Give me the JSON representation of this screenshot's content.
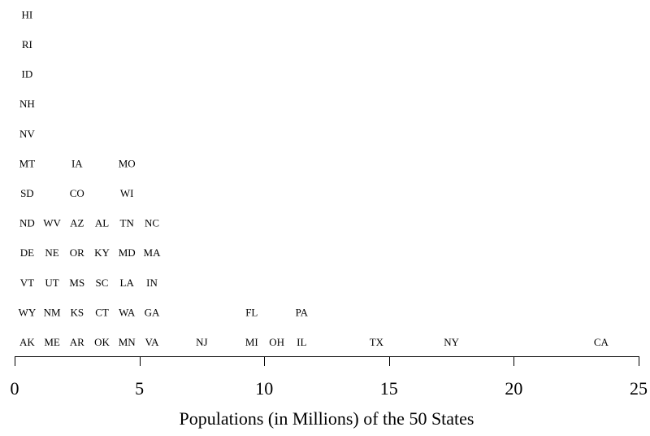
{
  "chart_data": {
    "type": "scatter",
    "xlabel": "Populations (in Millions) of the 50 States",
    "ylabel": "",
    "xlim": [
      0,
      25
    ],
    "x_ticks": [
      0,
      5,
      10,
      15,
      20,
      25
    ],
    "x_tick_labels": [
      "0",
      "5",
      "10",
      "15",
      "20",
      "25"
    ],
    "grid": false,
    "legend": "none",
    "marker": "state abbreviation text",
    "points": [
      {
        "label": "AK",
        "x": 0.5,
        "level": 1
      },
      {
        "label": "ME",
        "x": 1.5,
        "level": 1
      },
      {
        "label": "AR",
        "x": 2.5,
        "level": 1
      },
      {
        "label": "OK",
        "x": 3.5,
        "level": 1
      },
      {
        "label": "MN",
        "x": 4.5,
        "level": 1
      },
      {
        "label": "VA",
        "x": 5.5,
        "level": 1
      },
      {
        "label": "NJ",
        "x": 7.5,
        "level": 1
      },
      {
        "label": "MI",
        "x": 9.5,
        "level": 1
      },
      {
        "label": "OH",
        "x": 10.5,
        "level": 1
      },
      {
        "label": "IL",
        "x": 11.5,
        "level": 1
      },
      {
        "label": "TX",
        "x": 14.5,
        "level": 1
      },
      {
        "label": "NY",
        "x": 17.5,
        "level": 1
      },
      {
        "label": "CA",
        "x": 23.5,
        "level": 1
      },
      {
        "label": "WY",
        "x": 0.5,
        "level": 2
      },
      {
        "label": "NM",
        "x": 1.5,
        "level": 2
      },
      {
        "label": "KS",
        "x": 2.5,
        "level": 2
      },
      {
        "label": "CT",
        "x": 3.5,
        "level": 2
      },
      {
        "label": "WA",
        "x": 4.5,
        "level": 2
      },
      {
        "label": "GA",
        "x": 5.5,
        "level": 2
      },
      {
        "label": "FL",
        "x": 9.5,
        "level": 2
      },
      {
        "label": "PA",
        "x": 11.5,
        "level": 2
      },
      {
        "label": "VT",
        "x": 0.5,
        "level": 3
      },
      {
        "label": "UT",
        "x": 1.5,
        "level": 3
      },
      {
        "label": "MS",
        "x": 2.5,
        "level": 3
      },
      {
        "label": "SC",
        "x": 3.5,
        "level": 3
      },
      {
        "label": "LA",
        "x": 4.5,
        "level": 3
      },
      {
        "label": "IN",
        "x": 5.5,
        "level": 3
      },
      {
        "label": "DE",
        "x": 0.5,
        "level": 4
      },
      {
        "label": "NE",
        "x": 1.5,
        "level": 4
      },
      {
        "label": "OR",
        "x": 2.5,
        "level": 4
      },
      {
        "label": "KY",
        "x": 3.5,
        "level": 4
      },
      {
        "label": "MD",
        "x": 4.5,
        "level": 4
      },
      {
        "label": "MA",
        "x": 5.5,
        "level": 4
      },
      {
        "label": "ND",
        "x": 0.5,
        "level": 5
      },
      {
        "label": "WV",
        "x": 1.5,
        "level": 5
      },
      {
        "label": "AZ",
        "x": 2.5,
        "level": 5
      },
      {
        "label": "AL",
        "x": 3.5,
        "level": 5
      },
      {
        "label": "TN",
        "x": 4.5,
        "level": 5
      },
      {
        "label": "NC",
        "x": 5.5,
        "level": 5
      },
      {
        "label": "SD",
        "x": 0.5,
        "level": 6
      },
      {
        "label": "CO",
        "x": 2.5,
        "level": 6
      },
      {
        "label": "WI",
        "x": 4.5,
        "level": 6
      },
      {
        "label": "MT",
        "x": 0.5,
        "level": 7
      },
      {
        "label": "IA",
        "x": 2.5,
        "level": 7
      },
      {
        "label": "MO",
        "x": 4.5,
        "level": 7
      },
      {
        "label": "NV",
        "x": 0.5,
        "level": 8
      },
      {
        "label": "NH",
        "x": 0.5,
        "level": 9
      },
      {
        "label": "ID",
        "x": 0.5,
        "level": 10
      },
      {
        "label": "RI",
        "x": 0.5,
        "level": 11
      },
      {
        "label": "HI",
        "x": 0.5,
        "level": 12
      }
    ]
  }
}
